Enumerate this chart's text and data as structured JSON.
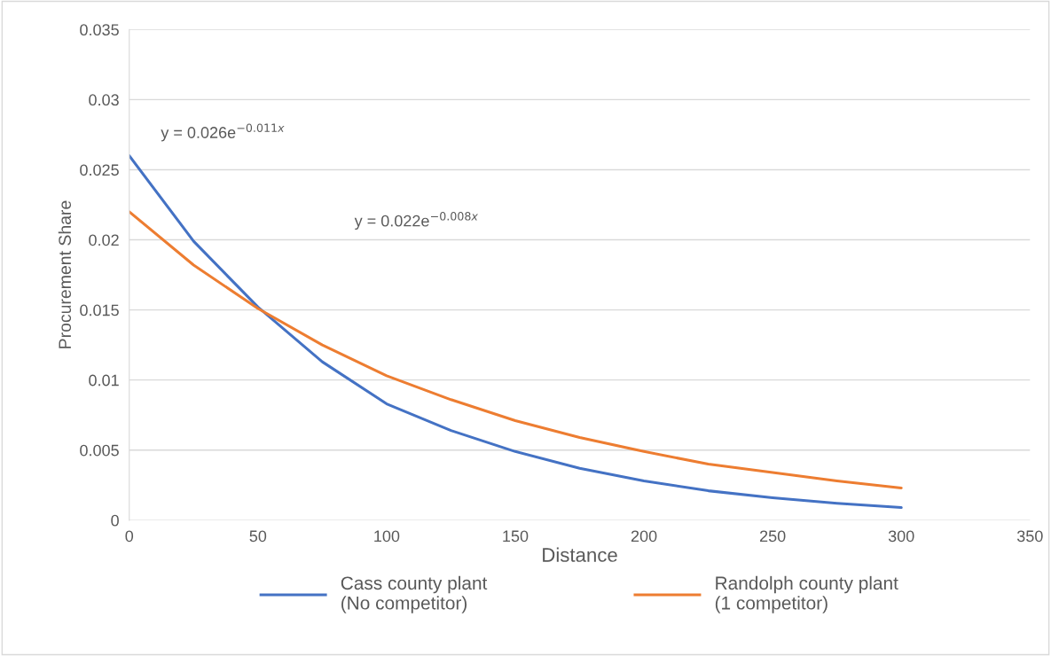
{
  "chart_data": {
    "type": "line",
    "xlabel": "Distance",
    "ylabel": "Procurement Share",
    "x": [
      0,
      25,
      50,
      75,
      100,
      125,
      150,
      175,
      200,
      225,
      250,
      275,
      300
    ],
    "series": [
      {
        "name": "Cass county plant\n(No competitor)",
        "color": "#4472c4",
        "values": [
          0.026,
          0.0199,
          0.0152,
          0.0113,
          0.0083,
          0.0064,
          0.0049,
          0.0037,
          0.0028,
          0.0021,
          0.0016,
          0.0012,
          0.0009
        ]
      },
      {
        "name": "Randolph county plant\n(1 competitor)",
        "color": "#ed7d31",
        "values": [
          0.022,
          0.0182,
          0.0151,
          0.0125,
          0.0103,
          0.0086,
          0.0071,
          0.0059,
          0.0049,
          0.004,
          0.0034,
          0.0028,
          0.0023
        ]
      }
    ],
    "annotations": [
      "y = 0.026e$^{−0.011x}$",
      "y = 0.022e$^{−0.008x}$"
    ],
    "xlim": [
      0,
      350
    ],
    "xticks": [
      0,
      50,
      100,
      150,
      200,
      250,
      300,
      350
    ],
    "ylim": [
      0,
      0.035
    ],
    "yticks": [
      0,
      0.005,
      0.01,
      0.015,
      0.02,
      0.025,
      0.03,
      0.035
    ],
    "grid": "y",
    "legend": "bottom",
    "marker": "none",
    "line_style": "solid"
  }
}
